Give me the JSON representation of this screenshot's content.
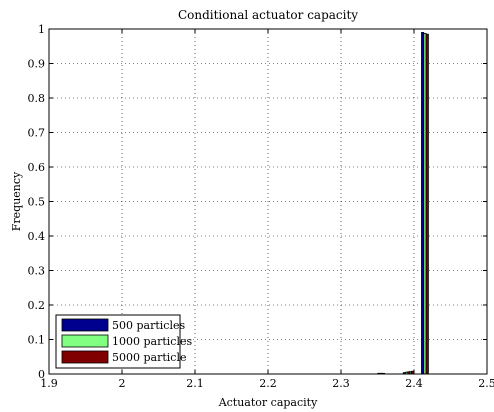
{
  "chart_data": {
    "type": "bar",
    "title": "Conditional actuator capacity",
    "xlabel": "Actuator capacity",
    "ylabel": "Frequency",
    "xlim": [
      1.9,
      2.5
    ],
    "ylim": [
      0,
      1
    ],
    "xticks": [
      "1.9",
      "2",
      "2.1",
      "2.2",
      "2.3",
      "2.4",
      "2.5"
    ],
    "yticks": [
      "0",
      "0.1",
      "0.2",
      "0.3",
      "0.4",
      "0.5",
      "0.6",
      "0.7",
      "0.8",
      "0.9",
      "1"
    ],
    "grid": true,
    "legend_position": "bottom-left",
    "bin_width": 0.005,
    "series": [
      {
        "name": "500 particles",
        "color": "#00008f",
        "x": [
          2.355,
          2.39,
          2.395,
          2.415
        ],
        "values": [
          0.002,
          0.004,
          0.006,
          0.99
        ]
      },
      {
        "name": "1000 particles",
        "color": "#80ff80",
        "x": [
          2.355,
          2.39,
          2.395,
          2.415
        ],
        "values": [
          0.002,
          0.005,
          0.007,
          0.987
        ]
      },
      {
        "name": "5000 particle",
        "color": "#800000",
        "x": [
          2.355,
          2.39,
          2.395,
          2.415
        ],
        "values": [
          0.002,
          0.006,
          0.008,
          0.985
        ]
      }
    ]
  }
}
